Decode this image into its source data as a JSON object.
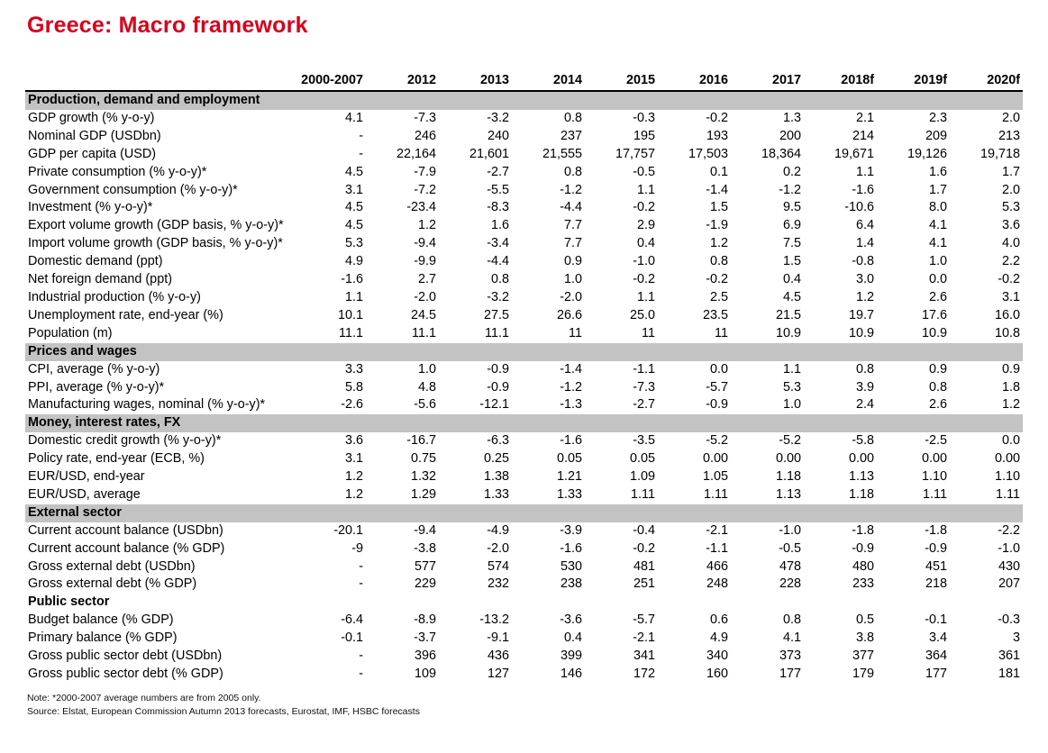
{
  "title": "Greece: Macro framework",
  "columns": [
    "2000-2007",
    "2012",
    "2013",
    "2014",
    "2015",
    "2016",
    "2017",
    "2018f",
    "2019f",
    "2020f"
  ],
  "sections": [
    {
      "name": "Production, demand and employment",
      "shaded": true,
      "rows": [
        {
          "label": "GDP growth (% y-o-y)",
          "values": [
            "4.1",
            "-7.3",
            "-3.2",
            "0.8",
            "-0.3",
            "-0.2",
            "1.3",
            "2.1",
            "2.3",
            "2.0"
          ]
        },
        {
          "label": "Nominal GDP (USDbn)",
          "values": [
            "-",
            "246",
            "240",
            "237",
            "195",
            "193",
            "200",
            "214",
            "209",
            "213"
          ]
        },
        {
          "label": "GDP per capita (USD)",
          "values": [
            "-",
            "22,164",
            "21,601",
            "21,555",
            "17,757",
            "17,503",
            "18,364",
            "19,671",
            "19,126",
            "19,718"
          ]
        },
        {
          "label": "Private consumption (% y-o-y)*",
          "values": [
            "4.5",
            "-7.9",
            "-2.7",
            "0.8",
            "-0.5",
            "0.1",
            "0.2",
            "1.1",
            "1.6",
            "1.7"
          ]
        },
        {
          "label": "Government consumption (% y-o-y)*",
          "values": [
            "3.1",
            "-7.2",
            "-5.5",
            "-1.2",
            "1.1",
            "-1.4",
            "-1.2",
            "-1.6",
            "1.7",
            "2.0"
          ]
        },
        {
          "label": "Investment (% y-o-y)*",
          "values": [
            "4.5",
            "-23.4",
            "-8.3",
            "-4.4",
            "-0.2",
            "1.5",
            "9.5",
            "-10.6",
            "8.0",
            "5.3"
          ]
        },
        {
          "label": "Export volume growth (GDP basis, % y-o-y)*",
          "values": [
            "4.5",
            "1.2",
            "1.6",
            "7.7",
            "2.9",
            "-1.9",
            "6.9",
            "6.4",
            "4.1",
            "3.6"
          ]
        },
        {
          "label": "Import volume growth (GDP basis, % y-o-y)*",
          "values": [
            "5.3",
            "-9.4",
            "-3.4",
            "7.7",
            "0.4",
            "1.2",
            "7.5",
            "1.4",
            "4.1",
            "4.0"
          ]
        },
        {
          "label": "Domestic demand (ppt)",
          "values": [
            "4.9",
            "-9.9",
            "-4.4",
            "0.9",
            "-1.0",
            "0.8",
            "1.5",
            "-0.8",
            "1.0",
            "2.2"
          ]
        },
        {
          "label": "Net foreign demand (ppt)",
          "values": [
            "-1.6",
            "2.7",
            "0.8",
            "1.0",
            "-0.2",
            "-0.2",
            "0.4",
            "3.0",
            "0.0",
            "-0.2"
          ]
        },
        {
          "label": "Industrial production (% y-o-y)",
          "values": [
            "1.1",
            "-2.0",
            "-3.2",
            "-2.0",
            "1.1",
            "2.5",
            "4.5",
            "1.2",
            "2.6",
            "3.1"
          ]
        },
        {
          "label": "Unemployment rate, end-year (%)",
          "values": [
            "10.1",
            "24.5",
            "27.5",
            "26.6",
            "25.0",
            "23.5",
            "21.5",
            "19.7",
            "17.6",
            "16.0"
          ]
        },
        {
          "label": "Population (m)",
          "values": [
            "11.1",
            "11.1",
            "11.1",
            "11",
            "11",
            "11",
            "10.9",
            "10.9",
            "10.9",
            "10.8"
          ]
        }
      ]
    },
    {
      "name": "Prices and wages",
      "shaded": true,
      "rows": [
        {
          "label": "CPI, average (% y-o-y)",
          "values": [
            "3.3",
            "1.0",
            "-0.9",
            "-1.4",
            "-1.1",
            "0.0",
            "1.1",
            "0.8",
            "0.9",
            "0.9"
          ]
        },
        {
          "label": "PPI, average (% y-o-y)*",
          "values": [
            "5.8",
            "4.8",
            "-0.9",
            "-1.2",
            "-7.3",
            "-5.7",
            "5.3",
            "3.9",
            "0.8",
            "1.8"
          ]
        },
        {
          "label": "Manufacturing wages, nominal (% y-o-y)*",
          "values": [
            "-2.6",
            "-5.6",
            "-12.1",
            "-1.3",
            "-2.7",
            "-0.9",
            "1.0",
            "2.4",
            "2.6",
            "1.2"
          ]
        }
      ]
    },
    {
      "name": "Money, interest rates, FX",
      "shaded": true,
      "rows": [
        {
          "label": "Domestic credit growth (% y-o-y)*",
          "values": [
            "3.6",
            "-16.7",
            "-6.3",
            "-1.6",
            "-3.5",
            "-5.2",
            "-5.2",
            "-5.8",
            "-2.5",
            "0.0"
          ]
        },
        {
          "label": "Policy rate, end-year (ECB, %)",
          "values": [
            "3.1",
            "0.75",
            "0.25",
            "0.05",
            "0.05",
            "0.00",
            "0.00",
            "0.00",
            "0.00",
            "0.00"
          ]
        },
        {
          "label": "EUR/USD, end-year",
          "values": [
            "1.2",
            "1.32",
            "1.38",
            "1.21",
            "1.09",
            "1.05",
            "1.18",
            "1.13",
            "1.10",
            "1.10"
          ]
        },
        {
          "label": "EUR/USD, average",
          "values": [
            "1.2",
            "1.29",
            "1.33",
            "1.33",
            "1.11",
            "1.11",
            "1.13",
            "1.18",
            "1.11",
            "1.11"
          ]
        }
      ]
    },
    {
      "name": "External sector",
      "shaded": true,
      "rows": [
        {
          "label": "Current account balance (USDbn)",
          "values": [
            "-20.1",
            "-9.4",
            "-4.9",
            "-3.9",
            "-0.4",
            "-2.1",
            "-1.0",
            "-1.8",
            "-1.8",
            "-2.2"
          ]
        },
        {
          "label": "Current account balance (% GDP)",
          "values": [
            "-9",
            "-3.8",
            "-2.0",
            "-1.6",
            "-0.2",
            "-1.1",
            "-0.5",
            "-0.9",
            "-0.9",
            "-1.0"
          ]
        },
        {
          "label": "Gross external debt (USDbn)",
          "values": [
            "-",
            "577",
            "574",
            "530",
            "481",
            "466",
            "478",
            "480",
            "451",
            "430"
          ]
        },
        {
          "label": "Gross external debt (% GDP)",
          "values": [
            "-",
            "229",
            "232",
            "238",
            "251",
            "248",
            "228",
            "233",
            "218",
            "207"
          ]
        }
      ]
    },
    {
      "name": "Public sector",
      "shaded": false,
      "rows": [
        {
          "label": "Budget balance (% GDP)",
          "values": [
            "-6.4",
            "-8.9",
            "-13.2",
            "-3.6",
            "-5.7",
            "0.6",
            "0.8",
            "0.5",
            "-0.1",
            "-0.3"
          ]
        },
        {
          "label": "Primary balance (% GDP)",
          "values": [
            "-0.1",
            "-3.7",
            "-9.1",
            "0.4",
            "-2.1",
            "4.9",
            "4.1",
            "3.8",
            "3.4",
            "3"
          ]
        },
        {
          "label": "Gross public sector debt (USDbn)",
          "values": [
            "-",
            "396",
            "436",
            "399",
            "341",
            "340",
            "373",
            "377",
            "364",
            "361"
          ]
        },
        {
          "label": "Gross public sector debt (% GDP)",
          "values": [
            "-",
            "109",
            "127",
            "146",
            "172",
            "160",
            "177",
            "179",
            "177",
            "181"
          ]
        }
      ]
    }
  ],
  "note": "Note: *2000-2007 average numbers are from 2005 only.",
  "source": "Source: Elstat, European Commission Autumn 2013 forecasts, Eurostat, IMF, HSBC forecasts"
}
